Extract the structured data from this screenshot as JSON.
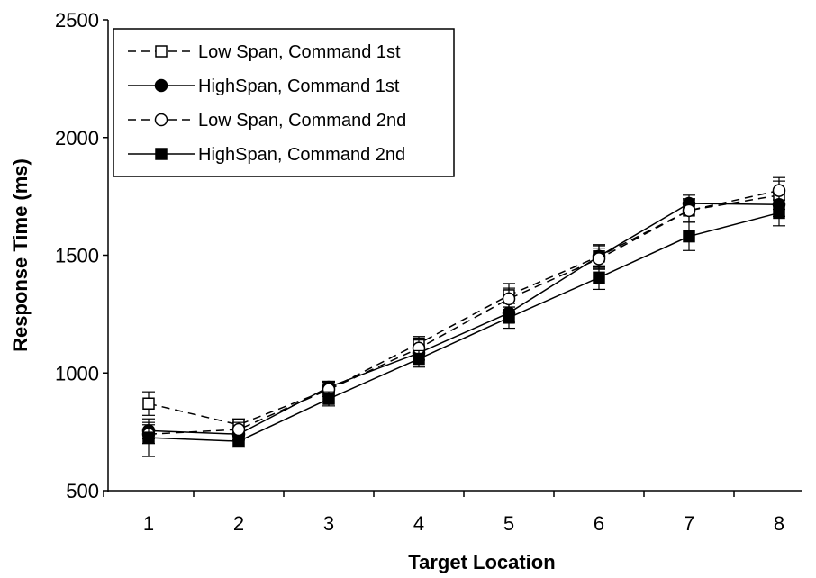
{
  "chart_data": {
    "type": "line",
    "title": "",
    "xlabel": "Target Location",
    "ylabel": "Response Time (ms)",
    "categories": [
      "1",
      "2",
      "3",
      "4",
      "5",
      "6",
      "7",
      "8"
    ],
    "ylim": [
      500,
      2500
    ],
    "yticks": [
      "500",
      "1000",
      "1500",
      "2000",
      "2500"
    ],
    "grid": false,
    "legend_position": "top-left",
    "error_bars": true,
    "series": [
      {
        "name": "Low Span, Command 1st",
        "line_style": "dashed",
        "marker": "open-square",
        "values": [
          870,
          780,
          930,
          1125,
          1330,
          1495,
          1690,
          1755
        ],
        "errors": [
          50,
          25,
          30,
          30,
          50,
          45,
          45,
          60
        ]
      },
      {
        "name": "HighSpan, Command 1st",
        "line_style": "solid",
        "marker": "filled-circle",
        "values": [
          755,
          740,
          940,
          1085,
          1255,
          1495,
          1720,
          1715
        ],
        "errors": [
          35,
          25,
          25,
          30,
          40,
          50,
          35,
          50
        ]
      },
      {
        "name": "Low Span, Command 2nd",
        "line_style": "dashed",
        "marker": "open-circle",
        "values": [
          740,
          760,
          930,
          1105,
          1315,
          1485,
          1690,
          1775
        ],
        "errors": [
          40,
          30,
          30,
          35,
          45,
          45,
          50,
          55
        ]
      },
      {
        "name": "HighSpan, Command 2nd",
        "line_style": "solid",
        "marker": "filled-square",
        "values": [
          725,
          710,
          890,
          1060,
          1235,
          1405,
          1580,
          1680
        ],
        "errors": [
          80,
          25,
          30,
          35,
          45,
          50,
          60,
          55
        ]
      }
    ]
  }
}
